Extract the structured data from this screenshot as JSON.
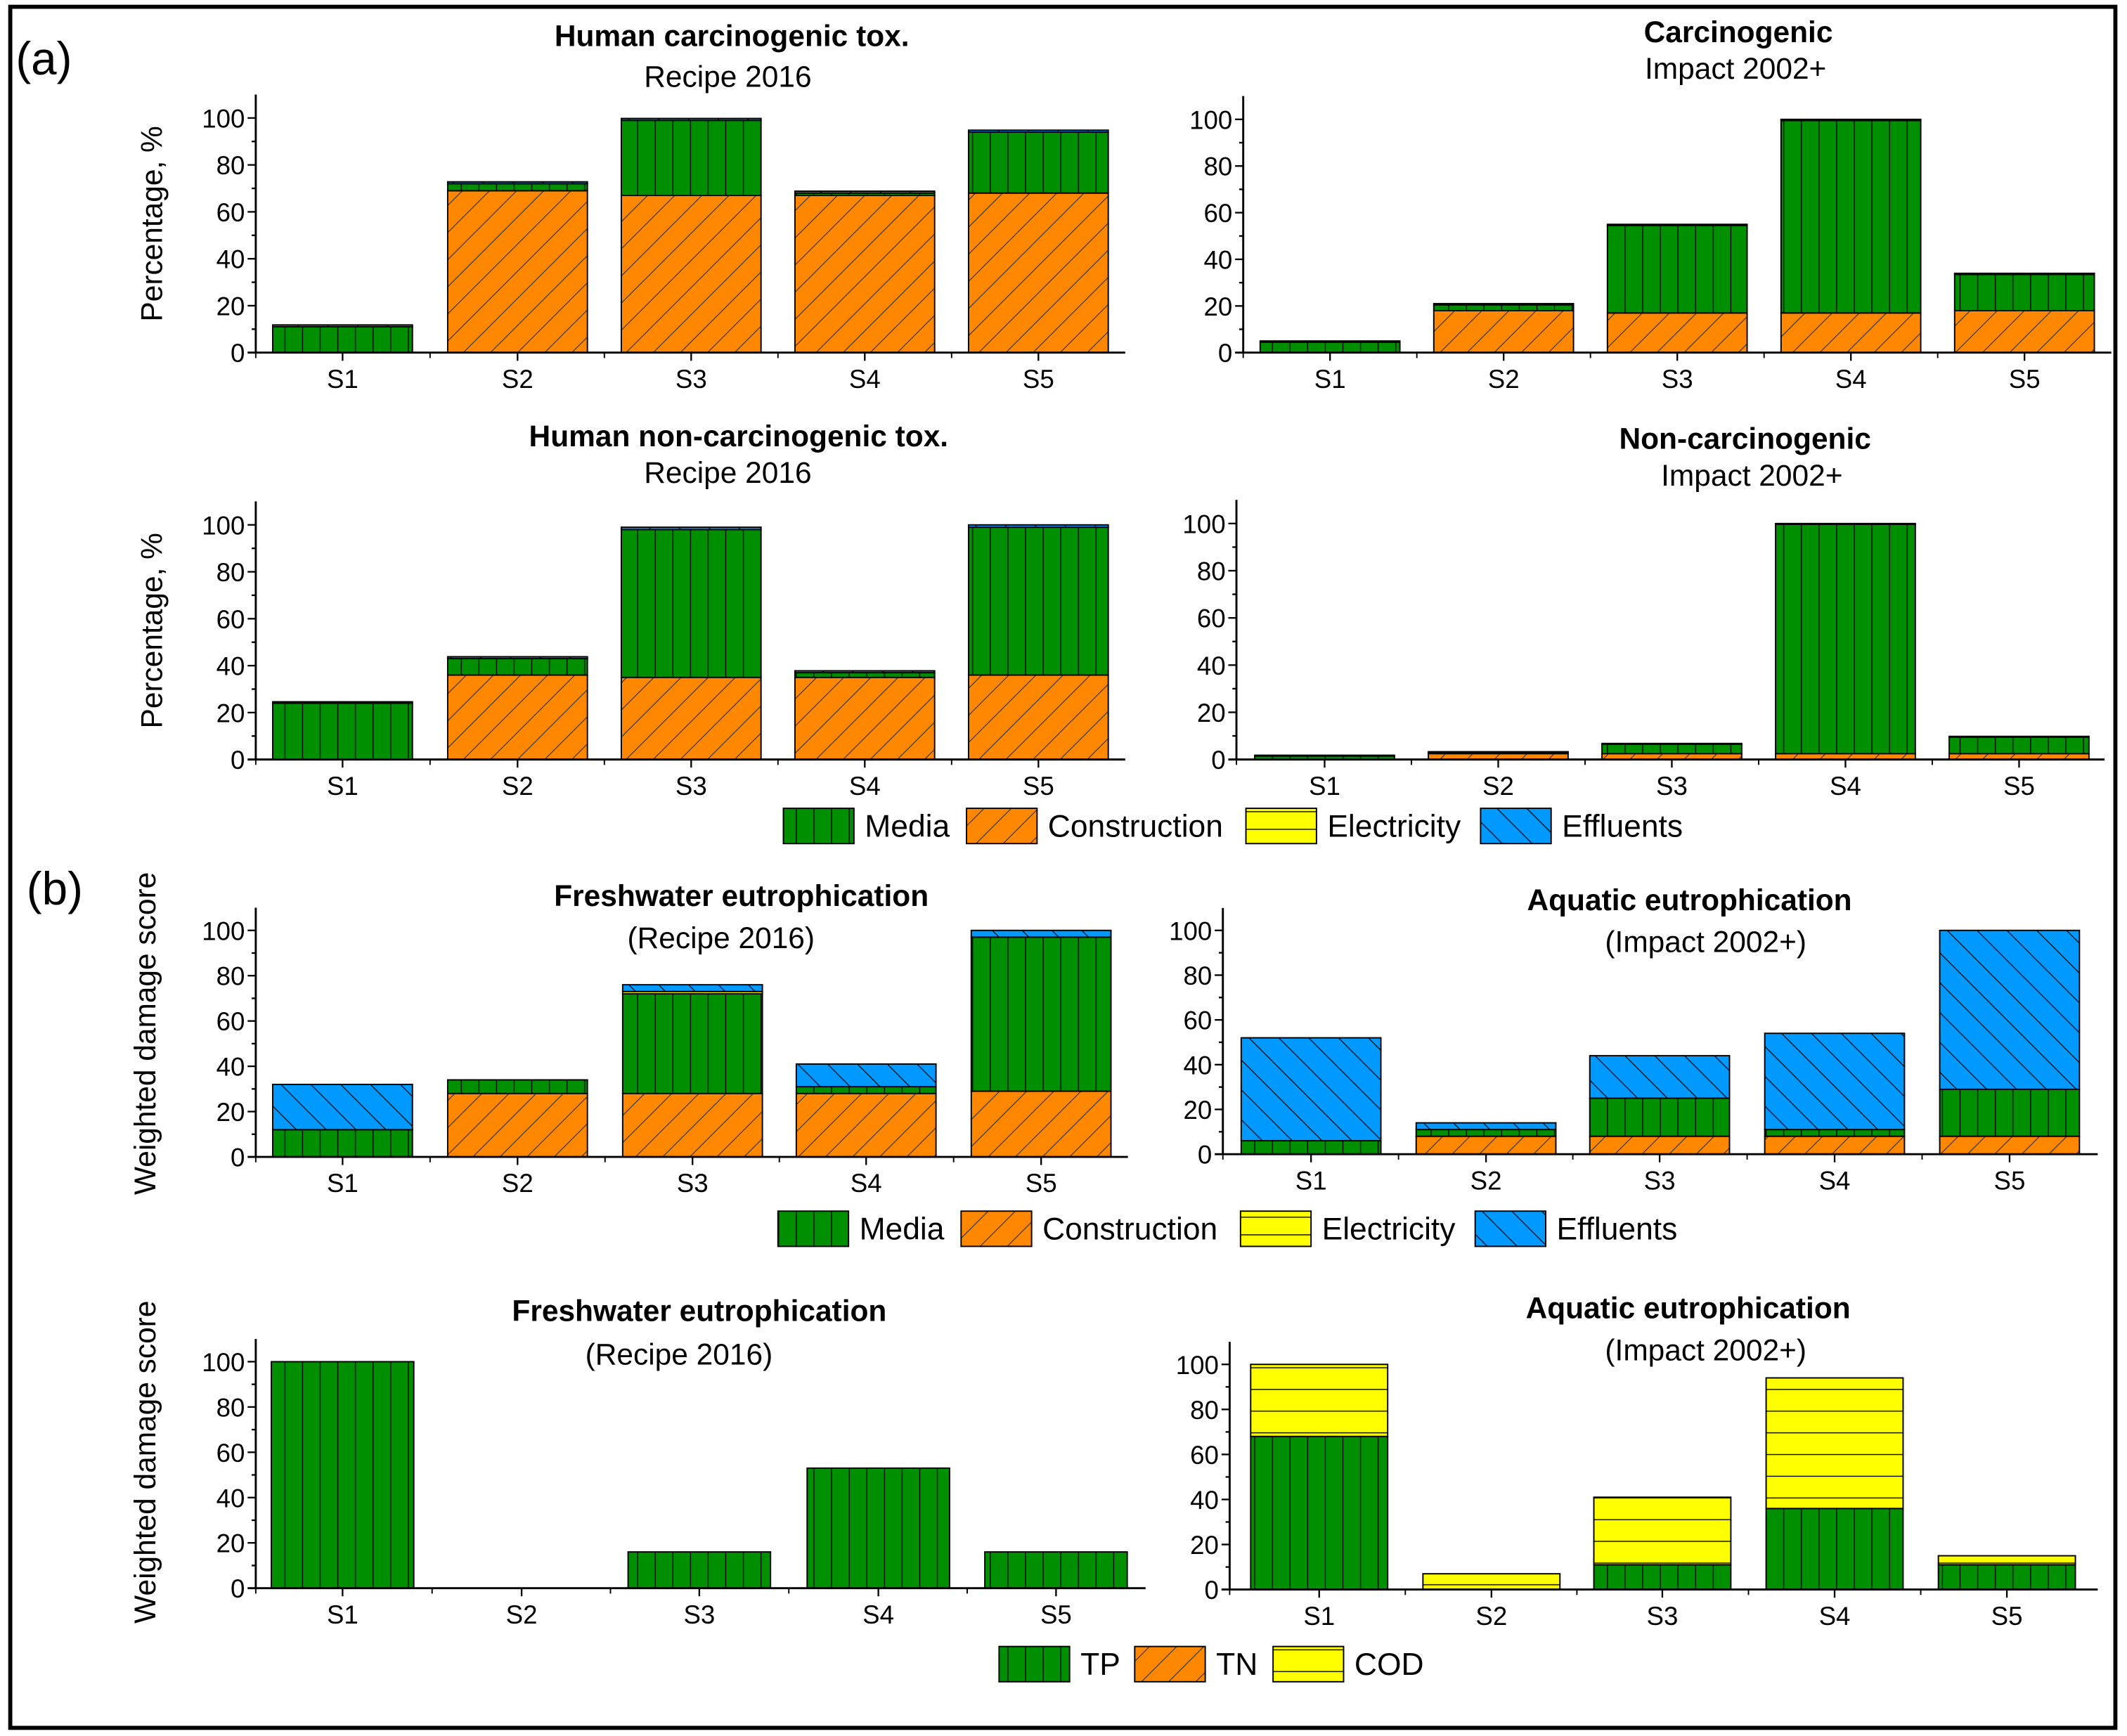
{
  "panel_labels": {
    "a": "(a)",
    "b": "(b)"
  },
  "colors": {
    "Media": "#008f00",
    "Construction": "#ff8800",
    "Electricity": "#ffff00",
    "Effluents": "#0099ff",
    "TP": "#008f00",
    "TN": "#ff8800",
    "COD": "#ffff00"
  },
  "legends": [
    {
      "items": [
        "Media",
        "Construction",
        "Electricity",
        "Effluents"
      ]
    },
    {
      "items": [
        "Media",
        "Construction",
        "Electricity",
        "Effluents"
      ]
    },
    {
      "items": [
        "TP",
        "TN",
        "COD"
      ]
    }
  ],
  "chart_data": [
    {
      "type": "bar",
      "stacked": true,
      "title": "Human carcinogenic tox.",
      "subtitle": "Recipe 2016",
      "ylabel": "Percentage, %",
      "xlabel": "",
      "categories": [
        "S1",
        "S2",
        "S3",
        "S4",
        "S5"
      ],
      "ylim": [
        0,
        110
      ],
      "yticks": [
        0,
        20,
        40,
        60,
        80,
        100
      ],
      "series": [
        {
          "name": "Construction",
          "values": [
            0,
            69,
            67,
            67,
            68
          ]
        },
        {
          "name": "Media",
          "values": [
            11,
            3,
            32,
            1,
            26
          ]
        },
        {
          "name": "Electricity",
          "values": [
            0,
            0,
            0,
            0,
            0
          ]
        },
        {
          "name": "Effluents",
          "values": [
            0.8,
            0.8,
            0.8,
            0.8,
            0.8
          ]
        }
      ]
    },
    {
      "type": "bar",
      "stacked": true,
      "title": "Carcinogenic",
      "subtitle": "Impact 2002+",
      "ylabel": "",
      "xlabel": "",
      "categories": [
        "S1",
        "S2",
        "S3",
        "S4",
        "S5"
      ],
      "ylim": [
        0,
        110
      ],
      "yticks": [
        0,
        20,
        40,
        60,
        80,
        100
      ],
      "series": [
        {
          "name": "Construction",
          "values": [
            0,
            18,
            17,
            17,
            18
          ]
        },
        {
          "name": "Media",
          "values": [
            4.5,
            2.5,
            37.5,
            82.5,
            15.5
          ]
        },
        {
          "name": "Electricity",
          "values": [
            0,
            0,
            0,
            0,
            0
          ]
        },
        {
          "name": "Effluents",
          "values": [
            0.5,
            0.5,
            0.5,
            0.5,
            0.5
          ]
        }
      ]
    },
    {
      "type": "bar",
      "stacked": true,
      "title": "Human non-carcinogenic tox.",
      "subtitle": "Recipe 2016",
      "ylabel": "Percentage, %",
      "xlabel": "",
      "categories": [
        "S1",
        "S2",
        "S3",
        "S4",
        "S5"
      ],
      "ylim": [
        0,
        110
      ],
      "yticks": [
        0,
        20,
        40,
        60,
        80,
        100
      ],
      "series": [
        {
          "name": "Construction",
          "values": [
            0,
            36,
            35,
            35,
            36
          ]
        },
        {
          "name": "Media",
          "values": [
            24,
            7,
            63,
            2,
            63
          ]
        },
        {
          "name": "Electricity",
          "values": [
            0,
            0,
            0,
            0,
            0
          ]
        },
        {
          "name": "Effluents",
          "values": [
            0.6,
            0.8,
            1,
            0.8,
            1
          ]
        }
      ]
    },
    {
      "type": "bar",
      "stacked": true,
      "title": "Non-carcinogenic",
      "subtitle": "Impact 2002+",
      "ylabel": "",
      "xlabel": "",
      "categories": [
        "S1",
        "S2",
        "S3",
        "S4",
        "S5"
      ],
      "ylim": [
        0,
        110
      ],
      "yticks": [
        0,
        20,
        40,
        60,
        80,
        100
      ],
      "series": [
        {
          "name": "Construction",
          "values": [
            0,
            2.5,
            2.5,
            2.5,
            2.5
          ]
        },
        {
          "name": "Media",
          "values": [
            1.5,
            0.5,
            4,
            97.2,
            7
          ]
        },
        {
          "name": "Electricity",
          "values": [
            0,
            0,
            0,
            0,
            0
          ]
        },
        {
          "name": "Effluents",
          "values": [
            0.3,
            0.3,
            0.3,
            0.3,
            0.3
          ]
        }
      ]
    },
    {
      "type": "bar",
      "stacked": true,
      "title": "Freshwater eutrophication",
      "subtitle": "(Recipe 2016)",
      "ylabel": "Weighted damage score",
      "xlabel": "",
      "categories": [
        "S1",
        "S2",
        "S3",
        "S4",
        "S5"
      ],
      "ylim": [
        0,
        110
      ],
      "yticks": [
        0,
        20,
        40,
        60,
        80,
        100
      ],
      "series": [
        {
          "name": "Construction",
          "values": [
            0,
            28,
            28,
            28,
            29
          ]
        },
        {
          "name": "Media",
          "values": [
            12,
            6,
            44,
            3,
            68
          ]
        },
        {
          "name": "Electricity",
          "values": [
            0,
            0,
            1,
            0,
            0
          ]
        },
        {
          "name": "Effluents",
          "values": [
            20,
            0,
            3,
            10,
            3
          ]
        }
      ]
    },
    {
      "type": "bar",
      "stacked": true,
      "title": "Aquatic eutrophication",
      "subtitle": "(Impact 2002+)",
      "ylabel": "",
      "xlabel": "",
      "categories": [
        "S1",
        "S2",
        "S3",
        "S4",
        "S5"
      ],
      "ylim": [
        0,
        110
      ],
      "yticks": [
        0,
        20,
        40,
        60,
        80,
        100
      ],
      "series": [
        {
          "name": "Construction",
          "values": [
            0,
            8,
            8,
            8,
            8
          ]
        },
        {
          "name": "Media",
          "values": [
            6,
            3,
            17,
            3,
            21
          ]
        },
        {
          "name": "Electricity",
          "values": [
            0,
            0,
            0,
            0,
            0
          ]
        },
        {
          "name": "Effluents",
          "values": [
            46,
            3,
            19,
            43,
            71
          ]
        }
      ]
    },
    {
      "type": "bar",
      "stacked": true,
      "title": "Freshwater eutrophication",
      "subtitle": "(Recipe 2016)",
      "ylabel": "Weighted damage score",
      "xlabel": "",
      "categories": [
        "S1",
        "S2",
        "S3",
        "S4",
        "S5"
      ],
      "ylim": [
        0,
        110
      ],
      "yticks": [
        0,
        20,
        40,
        60,
        80,
        100
      ],
      "series": [
        {
          "name": "TP",
          "values": [
            100,
            0,
            16,
            53,
            16
          ]
        },
        {
          "name": "TN",
          "values": [
            0,
            0,
            0,
            0,
            0
          ]
        },
        {
          "name": "COD",
          "values": [
            0,
            0,
            0,
            0,
            0
          ]
        }
      ]
    },
    {
      "type": "bar",
      "stacked": true,
      "title": "Aquatic eutrophication",
      "subtitle": "(Impact 2002+)",
      "ylabel": "",
      "xlabel": "",
      "categories": [
        "S1",
        "S2",
        "S3",
        "S4",
        "S5"
      ],
      "ylim": [
        0,
        110
      ],
      "yticks": [
        0,
        20,
        40,
        60,
        80,
        100
      ],
      "series": [
        {
          "name": "TP",
          "values": [
            68,
            0,
            11,
            36,
            11
          ]
        },
        {
          "name": "TN",
          "values": [
            0,
            0,
            0,
            0,
            0
          ]
        },
        {
          "name": "COD",
          "values": [
            32,
            7,
            30,
            58,
            4
          ]
        }
      ]
    }
  ]
}
